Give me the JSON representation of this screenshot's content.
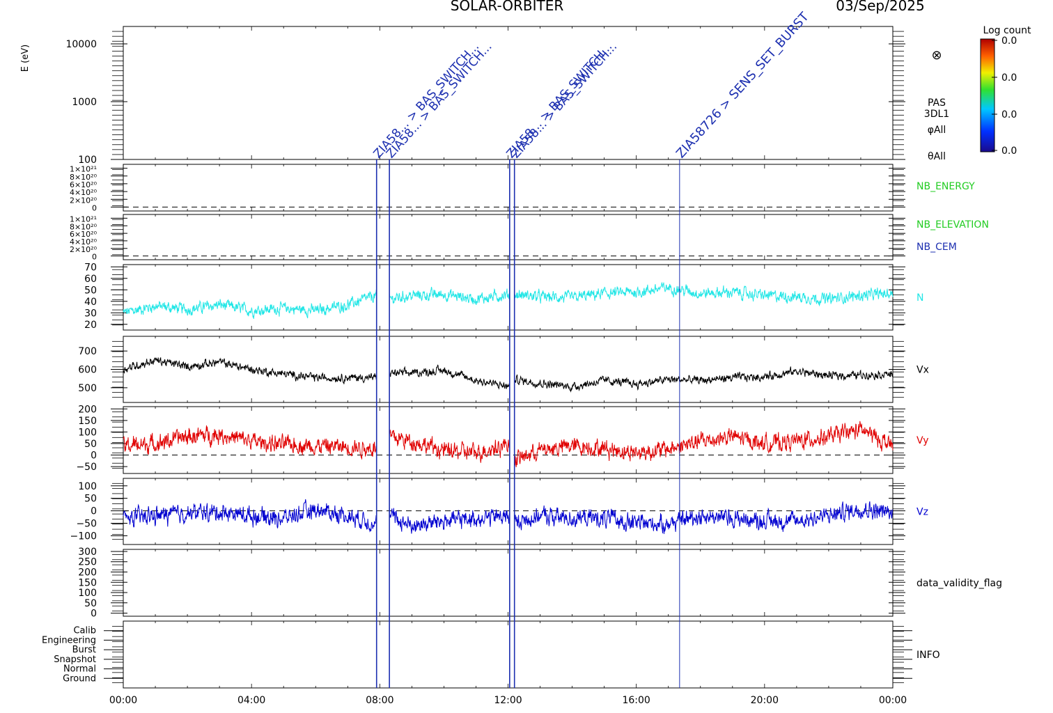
{
  "header": {
    "mission": "SOLAR-ORBITER",
    "date": "03/Sep/2025"
  },
  "colorbar": {
    "title": "Log count",
    "ticks": [
      "0.0",
      "0.0",
      "0.0",
      "0.0"
    ]
  },
  "time_axis": {
    "labels": [
      "00:00",
      "04:00",
      "08:00",
      "12:00",
      "16:00",
      "20:00",
      "00:00"
    ],
    "hours": [
      0,
      4,
      8,
      12,
      16,
      20,
      24
    ]
  },
  "events": {
    "color": "#1c2fb0",
    "markers": [
      {
        "hour": 7.9,
        "label": "ZIA58... > BAS_SWITCH..."
      },
      {
        "hour": 8.3,
        "label": "ZIA58... > BAS_SWITCH..."
      },
      {
        "hour": 12.05,
        "label": "ZIA58... > BAS_SWITCH..."
      },
      {
        "hour": 12.2,
        "label": "ZIA58... > BAS_SWITCH..."
      },
      {
        "hour": 17.35,
        "label": "ZIA58726 > SENS_SET_BURST"
      }
    ]
  },
  "chart_data": [
    {
      "id": "spectrogram",
      "type": "heatmap",
      "ylabel": "E (eV)",
      "yscale": "log",
      "ylim": [
        100,
        20000
      ],
      "yticks": [
        {
          "v": 100,
          "label": "100"
        },
        {
          "v": 1000,
          "label": "1000"
        },
        {
          "v": 10000,
          "label": "10000"
        }
      ],
      "right_labels": [
        "PAS",
        "3DL1",
        "φAll",
        "θAll"
      ],
      "symbol": "⊗"
    },
    {
      "id": "nb-energy",
      "type": "line",
      "right_labels": [
        {
          "text": "NB_ENERGY",
          "color": "#22cc22"
        }
      ],
      "ylim": [
        -1e+20,
        1.1e+21
      ],
      "yticks": [
        {
          "v": 0,
          "label": "0"
        },
        {
          "v": 2e+20,
          "label": "2×10²⁰"
        },
        {
          "v": 4e+20,
          "label": "4×10²⁰"
        },
        {
          "v": 6e+20,
          "label": "6×10²⁰"
        },
        {
          "v": 8e+20,
          "label": "8×10²⁰"
        },
        {
          "v": 1e+21,
          "label": "1×10²¹"
        }
      ],
      "zero_line": true
    },
    {
      "id": "nb-elevation",
      "type": "line",
      "right_labels": [
        {
          "text": "NB_ELEVATION",
          "color": "#22cc22"
        },
        {
          "text": "NB_CEM",
          "color": "#1c2fb0"
        }
      ],
      "ylim": [
        -1e+20,
        1.1e+21
      ],
      "yticks": [
        {
          "v": 0,
          "label": "0"
        },
        {
          "v": 2e+20,
          "label": "2×10²⁰"
        },
        {
          "v": 4e+20,
          "label": "4×10²⁰"
        },
        {
          "v": 6e+20,
          "label": "6×10²⁰"
        },
        {
          "v": 8e+20,
          "label": "8×10²⁰"
        },
        {
          "v": 1e+21,
          "label": "1×10²¹"
        }
      ],
      "zero_line": true
    },
    {
      "id": "density",
      "type": "line",
      "series_name": "N",
      "color": "#22e6e6",
      "ylim": [
        15,
        72
      ],
      "yticks": [
        {
          "v": 20,
          "label": "20"
        },
        {
          "v": 30,
          "label": "30"
        },
        {
          "v": 40,
          "label": "40"
        },
        {
          "v": 50,
          "label": "50"
        },
        {
          "v": 60,
          "label": "60"
        },
        {
          "v": 70,
          "label": "70"
        }
      ],
      "x": [
        0,
        1,
        2,
        3,
        4,
        5,
        6,
        7,
        7.9,
        8.3,
        9,
        10,
        11,
        12.05,
        12.2,
        13,
        14,
        15,
        16,
        17,
        18,
        19,
        20,
        21,
        22,
        23,
        24
      ],
      "y": [
        30,
        36,
        33,
        37,
        32,
        34,
        32,
        37,
        45,
        42,
        45,
        46,
        42,
        46,
        46,
        44,
        43,
        47,
        48,
        52,
        47,
        48,
        45,
        44,
        42,
        45,
        47
      ],
      "noise": 4,
      "gaps": [
        [
          7.9,
          8.3
        ],
        [
          12.05,
          12.2
        ]
      ]
    },
    {
      "id": "vx",
      "type": "line",
      "series_name": "Vx",
      "color": "#000000",
      "ylim": [
        420,
        780
      ],
      "yticks": [
        {
          "v": 500,
          "label": "500"
        },
        {
          "v": 600,
          "label": "600"
        },
        {
          "v": 700,
          "label": "700"
        }
      ],
      "x": [
        0,
        1,
        2,
        3,
        4,
        5,
        6,
        7,
        7.9,
        8.3,
        9,
        10,
        11,
        12.05,
        12.2,
        13,
        14,
        15,
        16,
        17,
        18,
        19,
        20,
        21,
        22,
        23,
        24
      ],
      "y": [
        600,
        650,
        615,
        640,
        600,
        575,
        555,
        555,
        555,
        580,
        580,
        595,
        540,
        505,
        545,
        525,
        505,
        540,
        520,
        545,
        540,
        555,
        560,
        590,
        565,
        570,
        575
      ],
      "noise": 18,
      "gaps": [
        [
          7.9,
          8.3
        ],
        [
          12.05,
          12.2
        ]
      ]
    },
    {
      "id": "vy",
      "type": "line",
      "series_name": "Vy",
      "color": "#e00000",
      "ylim": [
        -80,
        210
      ],
      "yticks": [
        {
          "v": -50,
          "label": "−50"
        },
        {
          "v": 0,
          "label": "0"
        },
        {
          "v": 50,
          "label": "50"
        },
        {
          "v": 100,
          "label": "100"
        },
        {
          "v": 150,
          "label": "150"
        },
        {
          "v": 200,
          "label": "200"
        }
      ],
      "zero_line": true,
      "x": [
        0,
        1,
        2,
        3,
        4,
        5,
        6,
        7,
        7.9,
        8.3,
        9,
        10,
        11,
        12.05,
        12.2,
        13,
        14,
        15,
        16,
        17,
        18,
        19,
        20,
        21,
        22,
        23,
        24
      ],
      "y": [
        40,
        50,
        80,
        90,
        60,
        45,
        40,
        35,
        30,
        80,
        60,
        20,
        10,
        50,
        -20,
        20,
        40,
        30,
        10,
        25,
        60,
        80,
        50,
        60,
        80,
        110,
        40
      ],
      "noise": 30,
      "gaps": [
        [
          7.9,
          8.3
        ],
        [
          12.05,
          12.2
        ]
      ]
    },
    {
      "id": "vz",
      "type": "line",
      "series_name": "Vz",
      "color": "#0000d0",
      "ylim": [
        -135,
        130
      ],
      "yticks": [
        {
          "v": -100,
          "label": "−100"
        },
        {
          "v": -50,
          "label": "−50"
        },
        {
          "v": 0,
          "label": "0"
        },
        {
          "v": 50,
          "label": "50"
        },
        {
          "v": 100,
          "label": "100"
        }
      ],
      "zero_line": true,
      "x": [
        0,
        1,
        2,
        3,
        4,
        5,
        6,
        7,
        7.9,
        8.3,
        9,
        10,
        11,
        12.05,
        12.2,
        13,
        14,
        15,
        16,
        17,
        18,
        19,
        20,
        21,
        22,
        23,
        24
      ],
      "y": [
        -30,
        -20,
        -10,
        -5,
        -20,
        -30,
        5,
        -20,
        -50,
        -20,
        -60,
        -40,
        -30,
        -20,
        -50,
        -20,
        -30,
        -30,
        -50,
        -50,
        -20,
        -30,
        -40,
        -40,
        -20,
        10,
        -10
      ],
      "noise": 28,
      "gaps": [
        [
          7.9,
          8.3
        ],
        [
          12.05,
          12.2
        ]
      ]
    },
    {
      "id": "validity",
      "type": "line",
      "right_labels": [
        {
          "text": "data_validity_flag",
          "color": "#000000"
        }
      ],
      "ylim": [
        -15,
        310
      ],
      "yticks": [
        {
          "v": 0,
          "label": "0"
        },
        {
          "v": 50,
          "label": "50"
        },
        {
          "v": 100,
          "label": "100"
        },
        {
          "v": 150,
          "label": "150"
        },
        {
          "v": 200,
          "label": "200"
        },
        {
          "v": 250,
          "label": "250"
        },
        {
          "v": 300,
          "label": "300"
        }
      ]
    },
    {
      "id": "info",
      "type": "table",
      "right_labels": [
        {
          "text": "INFO",
          "color": "#000000"
        }
      ],
      "categories": [
        "Calib",
        "Engineering",
        "Burst",
        "Snapshot",
        "Normal",
        "Ground"
      ]
    }
  ]
}
